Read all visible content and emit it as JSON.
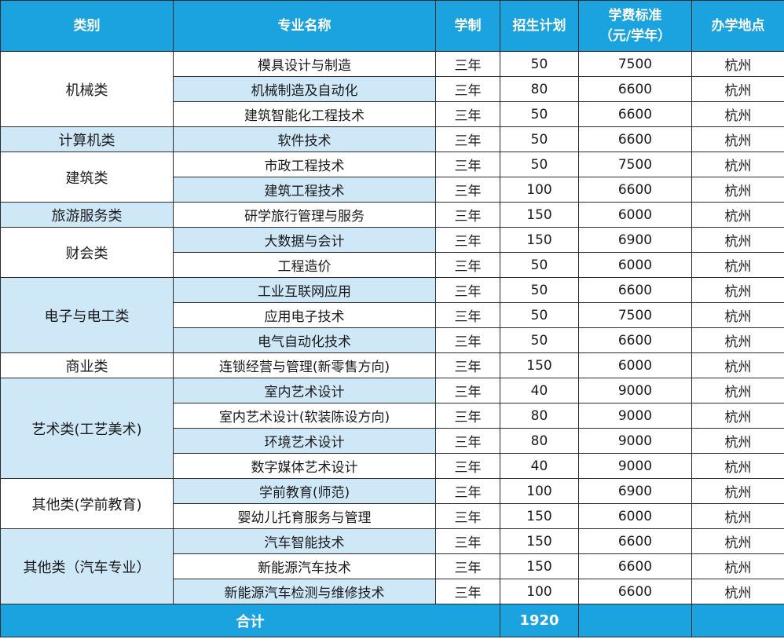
{
  "headers": {
    "category": "类别",
    "major": "专业名称",
    "duration": "学制",
    "quota": "招生计划",
    "tuition_line1": "学费标准",
    "tuition_line2": "（元/学年）",
    "location": "办学地点"
  },
  "rows": [
    {
      "category": "机械类",
      "major": "模具设计与制造",
      "duration": "三年",
      "quota": "50",
      "tuition": "7500",
      "location": "杭州"
    },
    {
      "category": "",
      "major": "机械制造及自动化",
      "duration": "三年",
      "quota": "80",
      "tuition": "6600",
      "location": "杭州"
    },
    {
      "category": "",
      "major": "建筑智能化工程技术",
      "duration": "三年",
      "quota": "50",
      "tuition": "6600",
      "location": "杭州"
    },
    {
      "category": "计算机类",
      "major": "软件技术",
      "duration": "三年",
      "quota": "50",
      "tuition": "6600",
      "location": "杭州"
    },
    {
      "category": "建筑类",
      "major": "市政工程技术",
      "duration": "三年",
      "quota": "50",
      "tuition": "7500",
      "location": "杭州"
    },
    {
      "category": "",
      "major": "建筑工程技术",
      "duration": "三年",
      "quota": "100",
      "tuition": "6600",
      "location": "杭州"
    },
    {
      "category": "旅游服务类",
      "major": "研学旅行管理与服务",
      "duration": "三年",
      "quota": "150",
      "tuition": "6000",
      "location": "杭州"
    },
    {
      "category": "财会类",
      "major": "大数据与会计",
      "duration": "三年",
      "quota": "150",
      "tuition": "6900",
      "location": "杭州"
    },
    {
      "category": "",
      "major": "工程造价",
      "duration": "三年",
      "quota": "50",
      "tuition": "6000",
      "location": "杭州"
    },
    {
      "category": "电子与电工类",
      "major": "工业互联网应用",
      "duration": "三年",
      "quota": "50",
      "tuition": "6600",
      "location": "杭州"
    },
    {
      "category": "",
      "major": "应用电子技术",
      "duration": "三年",
      "quota": "50",
      "tuition": "7500",
      "location": "杭州"
    },
    {
      "category": "",
      "major": "电气自动化技术",
      "duration": "三年",
      "quota": "50",
      "tuition": "6600",
      "location": "杭州"
    },
    {
      "category": "商业类",
      "major": "连锁经营与管理(新零售方向)",
      "duration": "三年",
      "quota": "150",
      "tuition": "6000",
      "location": "杭州"
    },
    {
      "category": "艺术类(工艺美术)",
      "major": "室内艺术设计",
      "duration": "三年",
      "quota": "40",
      "tuition": "9000",
      "location": "杭州"
    },
    {
      "category": "",
      "major": "室内艺术设计(软装陈设方向)",
      "duration": "三年",
      "quota": "80",
      "tuition": "9000",
      "location": "杭州"
    },
    {
      "category": "",
      "major": "环境艺术设计",
      "duration": "三年",
      "quota": "80",
      "tuition": "9000",
      "location": "杭州"
    },
    {
      "category": "",
      "major": "数字媒体艺术设计",
      "duration": "三年",
      "quota": "40",
      "tuition": "9000",
      "location": "杭州"
    },
    {
      "category": "其他类(学前教育)",
      "major": "学前教育(师范)",
      "duration": "三年",
      "quota": "100",
      "tuition": "6900",
      "location": "杭州"
    },
    {
      "category": "",
      "major": "婴幼儿托育服务与管理",
      "duration": "三年",
      "quota": "150",
      "tuition": "6000",
      "location": "杭州"
    },
    {
      "category": "其他类（汽车专业）",
      "major": "汽车智能技术",
      "duration": "三年",
      "quota": "150",
      "tuition": "6600",
      "location": "杭州"
    },
    {
      "category": "",
      "major": "新能源汽车技术",
      "duration": "三年",
      "quota": "150",
      "tuition": "6600",
      "location": "杭州"
    },
    {
      "category": "",
      "major": "新能源汽车检测与维修技术",
      "duration": "三年",
      "quota": "100",
      "tuition": "6600",
      "location": "杭州"
    }
  ],
  "total": {
    "label": "合计",
    "quota": "1920"
  },
  "colors": {
    "header_bg": "#1ba3df",
    "band_blue": "#cfe8f8",
    "band_white": "#ffffff",
    "border": "#2b2b2b"
  }
}
